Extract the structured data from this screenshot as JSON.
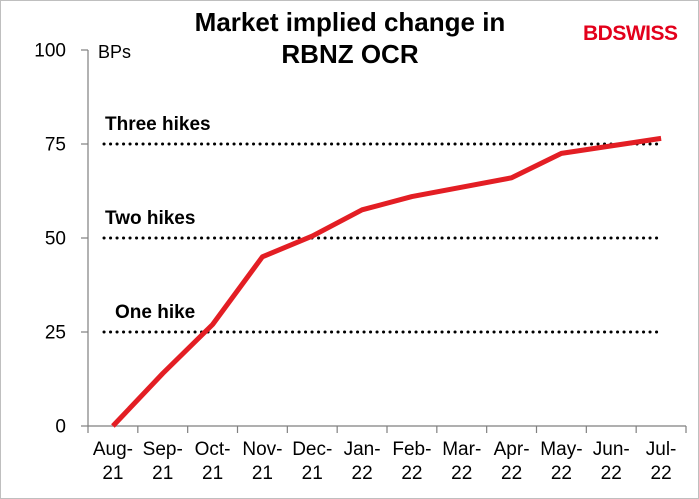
{
  "title_lines": [
    "Market implied change in",
    "RBNZ OCR"
  ],
  "logo": {
    "part1": "BD",
    "part2": "SWISS"
  },
  "colors": {
    "series": "#e31e24",
    "reference": "#000000",
    "axis": "#7f7f7f",
    "logo": "#e3001b"
  },
  "chart_data": {
    "type": "line",
    "title": "Market implied change in RBNZ OCR",
    "unit_label": "BPs",
    "x_tick_labels": [
      [
        "Aug-",
        "21"
      ],
      [
        "Sep-",
        "21"
      ],
      [
        "Oct-",
        "21"
      ],
      [
        "Nov-",
        "21"
      ],
      [
        "Dec-",
        "21"
      ],
      [
        "Jan-",
        "22"
      ],
      [
        "Feb-",
        "22"
      ],
      [
        "Mar-",
        "22"
      ],
      [
        "Apr-",
        "22"
      ],
      [
        "May-",
        "22"
      ],
      [
        "Jun-",
        "22"
      ],
      [
        "Jul-",
        "22"
      ]
    ],
    "y_ticks": [
      0,
      25,
      50,
      75,
      100
    ],
    "ylim": [
      0,
      100
    ],
    "grid": false,
    "series": [
      {
        "x": [
          0,
          1,
          2,
          3,
          4,
          5,
          6,
          7,
          8,
          9,
          10,
          11
        ],
        "values": [
          0,
          14,
          27,
          45,
          50.5,
          57.5,
          61,
          63.5,
          66,
          72.5,
          74.5,
          76.5
        ]
      }
    ],
    "reference_lines": [
      {
        "value": 75,
        "label": "Three hikes",
        "style": "dotted"
      },
      {
        "value": 50,
        "label": "Two hikes",
        "style": "dotted"
      },
      {
        "value": 25,
        "label": "One hike",
        "style": "dotted"
      }
    ]
  }
}
